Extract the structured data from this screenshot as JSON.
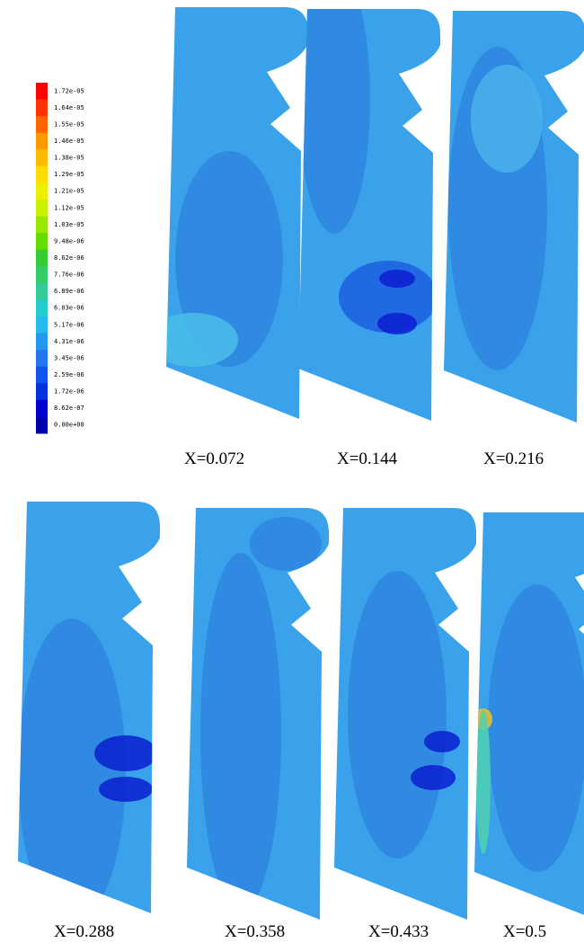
{
  "legend": {
    "labels": [
      "1.72e-05",
      "1.64e-05",
      "1.55e-05",
      "1.46e-05",
      "1.38e-05",
      "1.29e-05",
      "1.21e-05",
      "1.12e-05",
      "1.03e-05",
      "9.48e-06",
      "8.62e-06",
      "7.76e-06",
      "6.89e-06",
      "6.03e-06",
      "5.17e-06",
      "4.31e-06",
      "3.45e-06",
      "2.59e-06",
      "1.72e-06",
      "8.62e-07",
      "0.00e+00"
    ],
    "colors": [
      "#ff0000",
      "#ff3300",
      "#ff6600",
      "#ff9900",
      "#ffbb00",
      "#ffdd00",
      "#eeee00",
      "#ccee00",
      "#99e600",
      "#66dd00",
      "#33cc33",
      "#33cc66",
      "#33cc99",
      "#22cccc",
      "#22bbee",
      "#2299ee",
      "#2277ee",
      "#1155ee",
      "#0033dd",
      "#0000cc",
      "#0000aa"
    ]
  },
  "panels": [
    {
      "label": "X=0.072"
    },
    {
      "label": "X=0.144"
    },
    {
      "label": "X=0.216"
    },
    {
      "label": "X=0.288"
    },
    {
      "label": "X=0.358"
    },
    {
      "label": "X=0.433"
    },
    {
      "label": "X=0.5"
    }
  ]
}
